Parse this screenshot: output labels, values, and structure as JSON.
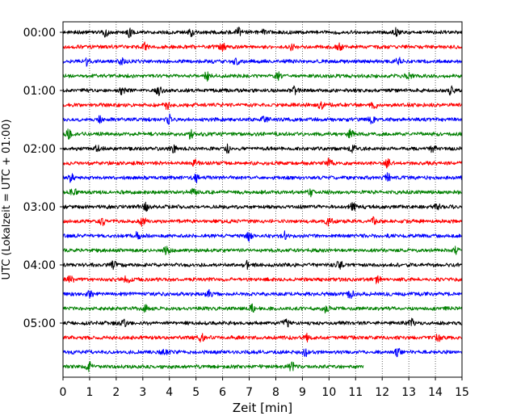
{
  "chart_data": {
    "type": "line",
    "title": "",
    "xlabel": "Zeit  [min]",
    "ylabel": "UTC (Lokalzeit = UTC + 01:00)",
    "xlim": [
      0,
      15
    ],
    "x_ticks": [
      "0",
      "1",
      "2",
      "3",
      "4",
      "5",
      "6",
      "7",
      "8",
      "9",
      "10",
      "11",
      "12",
      "13",
      "14",
      "15"
    ],
    "y_ticks": [
      "00:00",
      "01:00",
      "02:00",
      "03:00",
      "04:00",
      "05:00"
    ],
    "grid": "vertical-dotted",
    "trace_minutes_per_line": 15,
    "colors": [
      "#000000",
      "#ff0000",
      "#0000ff",
      "#008000"
    ],
    "series": [
      {
        "start": "00:00",
        "color": "#000000",
        "end_min": 15,
        "events_min": [
          1.6,
          2.5,
          4.8,
          6.6,
          7.5,
          12.5
        ]
      },
      {
        "start": "00:15",
        "color": "#ff0000",
        "end_min": 15,
        "events_min": [
          3.1,
          6.0,
          8.6,
          10.4
        ]
      },
      {
        "start": "00:30",
        "color": "#0000ff",
        "end_min": 15,
        "events_min": [
          0.9,
          2.2,
          6.5,
          12.6
        ]
      },
      {
        "start": "00:45",
        "color": "#008000",
        "end_min": 15,
        "events_min": [
          5.4,
          8.1,
          13.0
        ]
      },
      {
        "start": "01:00",
        "color": "#000000",
        "end_min": 15,
        "events_min": [
          2.2,
          3.6,
          8.7,
          14.6
        ]
      },
      {
        "start": "01:15",
        "color": "#ff0000",
        "end_min": 15,
        "events_min": [
          3.9,
          9.7,
          11.7
        ]
      },
      {
        "start": "01:30",
        "color": "#0000ff",
        "end_min": 15,
        "events_min": [
          1.4,
          4.0,
          7.6,
          11.6
        ]
      },
      {
        "start": "01:45",
        "color": "#008000",
        "end_min": 15,
        "events_min": [
          0.2,
          4.8,
          10.8
        ]
      },
      {
        "start": "02:00",
        "color": "#000000",
        "end_min": 15,
        "events_min": [
          1.3,
          4.2,
          6.2,
          10.9,
          13.9
        ]
      },
      {
        "start": "02:15",
        "color": "#ff0000",
        "end_min": 15,
        "events_min": [
          5.0,
          10.0,
          12.2
        ]
      },
      {
        "start": "02:30",
        "color": "#0000ff",
        "end_min": 15,
        "events_min": [
          0.3,
          5.0,
          12.2
        ]
      },
      {
        "start": "02:45",
        "color": "#008000",
        "end_min": 15,
        "events_min": [
          0.4,
          4.9,
          9.3
        ]
      },
      {
        "start": "03:00",
        "color": "#000000",
        "end_min": 15,
        "events_min": [
          3.1,
          10.9,
          14.1
        ]
      },
      {
        "start": "03:15",
        "color": "#ff0000",
        "end_min": 15,
        "events_min": [
          1.5,
          3.0,
          10.0,
          11.7
        ]
      },
      {
        "start": "03:30",
        "color": "#0000ff",
        "end_min": 15,
        "events_min": [
          2.8,
          7.0,
          8.3
        ]
      },
      {
        "start": "03:45",
        "color": "#008000",
        "end_min": 15,
        "events_min": [
          3.9,
          14.8
        ]
      },
      {
        "start": "04:00",
        "color": "#000000",
        "end_min": 15,
        "events_min": [
          1.9,
          6.9,
          10.4
        ]
      },
      {
        "start": "04:15",
        "color": "#ff0000",
        "end_min": 15,
        "events_min": [
          0.3,
          2.4,
          11.8
        ]
      },
      {
        "start": "04:30",
        "color": "#0000ff",
        "end_min": 15,
        "events_min": [
          1.0,
          5.5,
          10.8
        ]
      },
      {
        "start": "04:45",
        "color": "#008000",
        "end_min": 15,
        "events_min": [
          3.1,
          7.1,
          9.9
        ]
      },
      {
        "start": "05:00",
        "color": "#000000",
        "end_min": 15,
        "events_min": [
          2.3,
          8.4,
          13.1
        ]
      },
      {
        "start": "05:15",
        "color": "#ff0000",
        "end_min": 15,
        "events_min": [
          5.2,
          9.2,
          14.1
        ]
      },
      {
        "start": "05:30",
        "color": "#0000ff",
        "end_min": 15,
        "events_min": [
          3.8,
          9.1,
          12.6
        ]
      },
      {
        "start": "05:45",
        "color": "#008000",
        "end_min": 11.3,
        "events_min": [
          1.0,
          8.6
        ]
      }
    ]
  }
}
